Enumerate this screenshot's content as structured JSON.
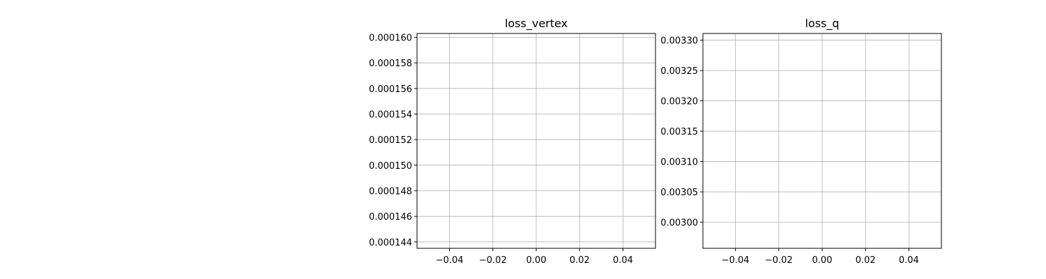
{
  "chart_data": [
    {
      "type": "line",
      "title": "loss_vertex",
      "xlabel": "",
      "ylabel": "",
      "xlim": [
        -0.055,
        0.055
      ],
      "ylim": [
        0.0001435,
        0.0001603
      ],
      "xticks": [
        -0.04,
        -0.02,
        0.0,
        0.02,
        0.04
      ],
      "xtick_labels": [
        "−0.04",
        "−0.02",
        "0.00",
        "0.02",
        "0.04"
      ],
      "yticks": [
        0.000144,
        0.000146,
        0.000148,
        0.00015,
        0.000152,
        0.000154,
        0.000156,
        0.000158,
        0.00016
      ],
      "ytick_labels": [
        "0.000144",
        "0.000146",
        "0.000148",
        "0.000150",
        "0.000152",
        "0.000154",
        "0.000156",
        "0.000158",
        "0.000160"
      ],
      "grid": true,
      "series": []
    },
    {
      "type": "line",
      "title": "loss_q",
      "xlabel": "",
      "ylabel": "",
      "xlim": [
        -0.055,
        0.055
      ],
      "ylim": [
        0.002957,
        0.003311
      ],
      "xticks": [
        -0.04,
        -0.02,
        0.0,
        0.02,
        0.04
      ],
      "xtick_labels": [
        "−0.04",
        "−0.02",
        "0.00",
        "0.02",
        "0.04"
      ],
      "yticks": [
        0.003,
        0.00305,
        0.0031,
        0.00315,
        0.0032,
        0.00325,
        0.0033
      ],
      "ytick_labels": [
        "0.00300",
        "0.00305",
        "0.00310",
        "0.00315",
        "0.00320",
        "0.00325",
        "0.00330"
      ],
      "grid": true,
      "series": []
    }
  ],
  "colors": {
    "grid": "#b0b0b0",
    "axes": "#000000",
    "background": "#ffffff"
  }
}
